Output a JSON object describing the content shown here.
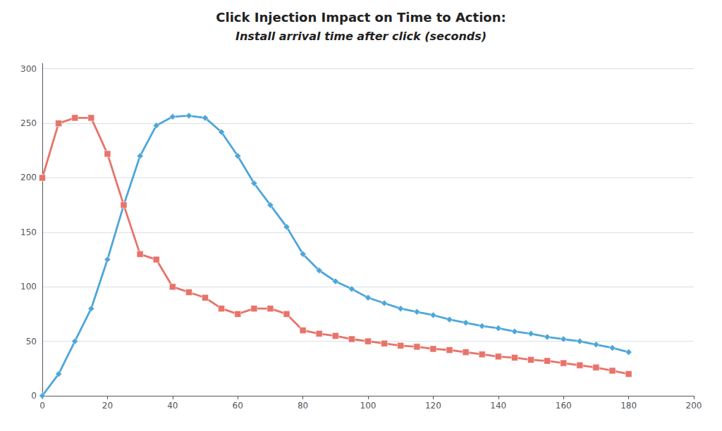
{
  "chart_data": {
    "type": "line",
    "title": "Click Injection Impact on Time to Action:",
    "subtitle": "Install arrival time after click (seconds)",
    "x": [
      0,
      5,
      10,
      15,
      20,
      25,
      30,
      35,
      40,
      45,
      50,
      55,
      60,
      65,
      70,
      75,
      80,
      85,
      90,
      95,
      100,
      105,
      110,
      115,
      120,
      125,
      130,
      135,
      140,
      145,
      150,
      155,
      160,
      165,
      170,
      175,
      180
    ],
    "series": [
      {
        "color": "#4da6d9",
        "marker": "diamond",
        "values": [
          0,
          20,
          50,
          80,
          125,
          175,
          220,
          248,
          256,
          257,
          255,
          242,
          220,
          195,
          175,
          155,
          130,
          115,
          105,
          98,
          90,
          85,
          80,
          77,
          74,
          70,
          67,
          64,
          62,
          59,
          57,
          54,
          52,
          50,
          47,
          44,
          40
        ]
      },
      {
        "color": "#e8736a",
        "marker": "square",
        "values": [
          200,
          250,
          255,
          255,
          222,
          175,
          130,
          125,
          100,
          95,
          90,
          80,
          75,
          80,
          80,
          75,
          60,
          57,
          55,
          52,
          50,
          48,
          46,
          45,
          43,
          42,
          40,
          38,
          36,
          35,
          33,
          32,
          30,
          28,
          26,
          23,
          20
        ]
      }
    ],
    "xlim": [
      0,
      200
    ],
    "xticks": [
      0,
      20,
      40,
      60,
      80,
      100,
      120,
      140,
      160,
      180,
      200
    ],
    "ylim": [
      0,
      305
    ],
    "yticks": [
      0,
      50,
      100,
      150,
      200,
      250,
      300
    ],
    "grid": true
  }
}
